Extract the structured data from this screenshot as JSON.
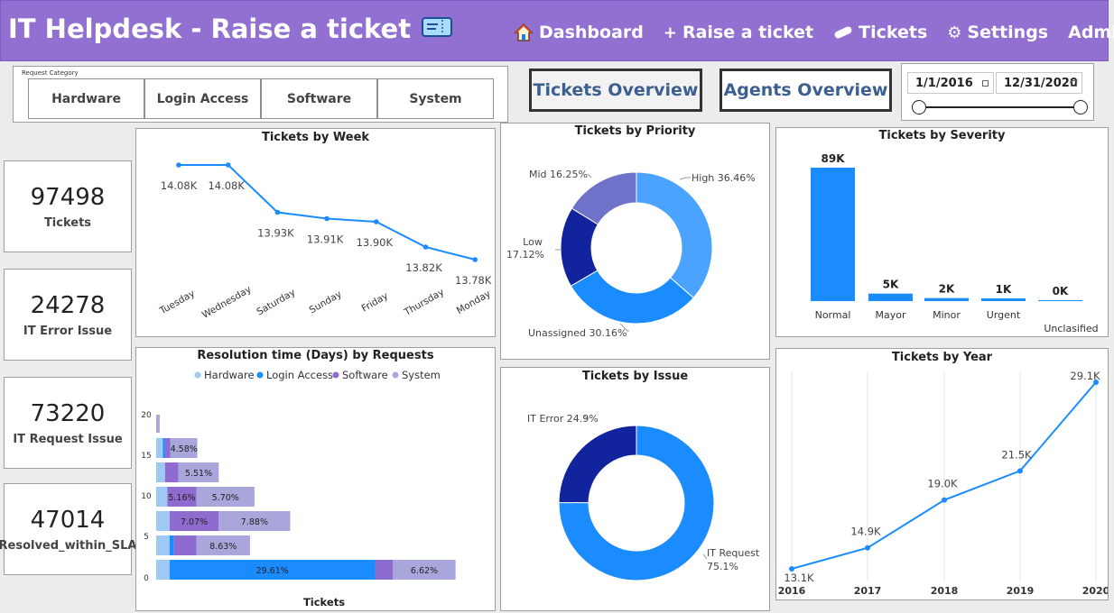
{
  "header": {
    "title": "IT Helpdesk - Raise a ticket",
    "nav": [
      {
        "label": "Dashboard",
        "icon": "house-icon"
      },
      {
        "label": "Raise a ticket",
        "icon": "plus-icon"
      },
      {
        "label": "Tickets",
        "icon": "bandage-icon"
      },
      {
        "label": "Settings",
        "icon": "gear-icon"
      },
      {
        "label": "Admin",
        "icon": "user-icon"
      }
    ]
  },
  "filter": {
    "label": "Request Category",
    "options": [
      "Hardware",
      "Login Access",
      "Software",
      "System"
    ]
  },
  "overview_buttons": {
    "tickets": "Tickets Overview",
    "agents": "Agents Overview"
  },
  "date_range": {
    "start": "1/1/2016",
    "end": "12/31/2020"
  },
  "kpis": [
    {
      "value": "97498",
      "label": "Tickets"
    },
    {
      "value": "24278",
      "label": "IT Error Issue"
    },
    {
      "value": "73220",
      "label": "IT Request Issue"
    },
    {
      "value": "47014",
      "label": "Resolved_within_SLA"
    }
  ],
  "colors": {
    "header": "#9270d1",
    "primary": "#1a8cff",
    "dark_blue": "#12239e",
    "light_blue": "#9ec9f5",
    "purple": "#8e6bcf",
    "lavender": "#a9a6dc"
  },
  "chart_data": [
    {
      "type": "line",
      "title": "Tickets by Week",
      "categories": [
        "Tuesday",
        "Wednesday",
        "Saturday",
        "Sunday",
        "Friday",
        "Thursday",
        "Monday"
      ],
      "values": [
        14080,
        14080,
        13930,
        13910,
        13900,
        13820,
        13780
      ],
      "labels": [
        "14.08K",
        "14.08K",
        "13.93K",
        "13.91K",
        "13.90K",
        "13.82K",
        "13.78K"
      ]
    },
    {
      "type": "pie",
      "title": "Tickets by Priority",
      "slices": [
        {
          "name": "High",
          "value": 36.46,
          "label": "High 36.46%"
        },
        {
          "name": "Unassigned",
          "value": 30.16,
          "label": "Unassigned 30.16%"
        },
        {
          "name": "Low",
          "value": 17.12,
          "label": "Low 17.12%"
        },
        {
          "name": "Mid",
          "value": 16.25,
          "label": "Mid 16.25%"
        }
      ]
    },
    {
      "type": "bar",
      "title": "Tickets by Severity",
      "categories": [
        "Normal",
        "Mayor",
        "Minor",
        "Urgent",
        "Unclasified"
      ],
      "values": [
        89,
        5,
        2,
        1,
        0
      ],
      "labels": [
        "89K",
        "5K",
        "2K",
        "1K",
        "0K"
      ]
    },
    {
      "type": "bar",
      "title": "Resolution time (Days) by Requests",
      "xlabel": "Tickets",
      "legend": [
        "Hardware",
        "Login Access",
        "Software",
        "System"
      ],
      "y_ticks": [
        "0",
        "5",
        "10",
        "15",
        "20"
      ],
      "rows": [
        {
          "y": 20,
          "segments": [
            0,
            0,
            0,
            0.8
          ],
          "labels": [
            "",
            "",
            "",
            ""
          ]
        },
        {
          "y": 15,
          "segments": [
            1.5,
            0.5,
            1.2,
            6
          ],
          "labels": [
            "",
            "",
            "",
            "4.58%"
          ]
        },
        {
          "y": 12,
          "segments": [
            2,
            0,
            3,
            9
          ],
          "labels": [
            "",
            "",
            "",
            "5.51%"
          ]
        },
        {
          "y": 10,
          "segments": [
            2.5,
            0,
            6.5,
            13
          ],
          "labels": [
            "",
            "",
            "5.16%",
            "5.70%"
          ]
        },
        {
          "y": 7,
          "segments": [
            3,
            0,
            11,
            16
          ],
          "labels": [
            "",
            "",
            "7.07%",
            "7.88%"
          ]
        },
        {
          "y": 5,
          "segments": [
            3,
            1,
            5,
            12
          ],
          "labels": [
            "",
            "",
            "",
            "8.63%"
          ]
        },
        {
          "y": 0,
          "segments": [
            3,
            46,
            4,
            14
          ],
          "labels": [
            "",
            "29.61%",
            "",
            "6.62%"
          ]
        }
      ]
    },
    {
      "type": "pie",
      "title": "Tickets by Issue",
      "slices": [
        {
          "name": "IT Request",
          "value": 75.1,
          "label": "IT Request 75.1%"
        },
        {
          "name": "IT Error",
          "value": 24.9,
          "label": "IT Error 24.9%"
        }
      ]
    },
    {
      "type": "line",
      "title": "Tickets by Year",
      "categories": [
        "2016",
        "2017",
        "2018",
        "2019",
        "2020"
      ],
      "values": [
        13.1,
        14.9,
        19.0,
        21.5,
        29.1
      ],
      "labels": [
        "13.1K",
        "14.9K",
        "19.0K",
        "21.5K",
        "29.1K"
      ]
    }
  ]
}
